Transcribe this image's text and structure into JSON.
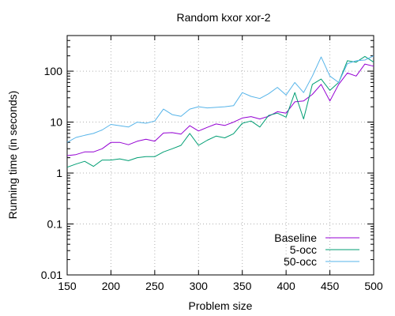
{
  "chart_data": {
    "type": "line",
    "title": "Random kxor xor-2",
    "xlabel": "Problem size",
    "ylabel": "Running time (in seconds)",
    "xlim": [
      150,
      500
    ],
    "ylim": [
      0.01,
      500
    ],
    "yscale": "log",
    "grid": true,
    "legend_position": "bottom-right",
    "x_ticks": [
      150,
      200,
      250,
      300,
      350,
      400,
      450,
      500
    ],
    "y_ticks": [
      0.01,
      0.1,
      1,
      10,
      100
    ],
    "x_tick_labels": [
      "150",
      "200",
      "250",
      "300",
      "350",
      "400",
      "450",
      "500"
    ],
    "y_tick_labels": [
      "0.01",
      "0.1",
      "1",
      "10",
      "100"
    ],
    "x": [
      150,
      160,
      170,
      180,
      190,
      200,
      210,
      220,
      230,
      240,
      250,
      260,
      270,
      280,
      290,
      300,
      310,
      320,
      330,
      340,
      350,
      360,
      370,
      380,
      390,
      400,
      410,
      420,
      430,
      440,
      450,
      460,
      470,
      480,
      490,
      500
    ],
    "series": [
      {
        "name": "Baseline",
        "color": "#9400d3",
        "values": [
          2.2,
          2.3,
          2.6,
          2.6,
          3.0,
          4.0,
          4.0,
          3.6,
          4.2,
          4.6,
          4.2,
          6.1,
          6.2,
          5.8,
          8.5,
          6.7,
          7.9,
          9.2,
          8.6,
          10.0,
          12.0,
          12.8,
          11.5,
          13.0,
          16.0,
          15.0,
          25.0,
          26.0,
          35.0,
          55.0,
          26.0,
          55.0,
          92.0,
          80.0,
          138.0,
          125.0
        ]
      },
      {
        "name": "5-occ",
        "color": "#009e73",
        "values": [
          1.3,
          1.5,
          1.7,
          1.35,
          1.8,
          1.8,
          1.9,
          1.75,
          2.0,
          2.1,
          2.1,
          2.6,
          3.0,
          3.5,
          6.0,
          3.5,
          4.4,
          5.3,
          4.9,
          5.9,
          9.5,
          10.5,
          8.0,
          13.5,
          15.0,
          12.5,
          38.0,
          11.5,
          55.0,
          70.0,
          42.0,
          60.0,
          160.0,
          150.0,
          195.0,
          150.0
        ]
      },
      {
        "name": "50-occ",
        "color": "#56b4e9",
        "values": [
          4.0,
          5.0,
          5.5,
          6.0,
          7.0,
          9.0,
          8.5,
          8.0,
          10.0,
          9.5,
          10.5,
          18.0,
          14.0,
          13.0,
          18.0,
          20.0,
          19.0,
          19.5,
          20.0,
          21.0,
          38.0,
          32.0,
          29.0,
          36.0,
          48.0,
          34.0,
          60.0,
          38.0,
          80.0,
          190.0,
          80.0,
          60.0,
          140.0,
          160.0,
          165.0,
          200.0
        ]
      }
    ]
  }
}
